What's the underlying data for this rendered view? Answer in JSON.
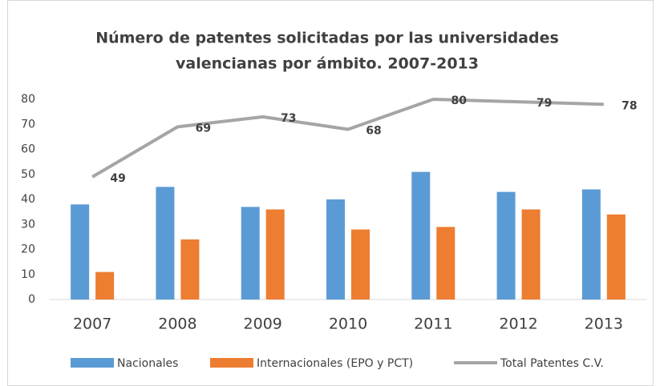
{
  "chart_data": {
    "type": "bar-line",
    "title": [
      "Número de patentes solicitadas por las universidades",
      "valencianas por ámbito. 2007-2013"
    ],
    "categories": [
      "2007",
      "2008",
      "2009",
      "2010",
      "2011",
      "2012",
      "2013"
    ],
    "series": [
      {
        "name": "Nacionales",
        "type": "bar",
        "color": "#5b9bd5",
        "values": [
          38,
          45,
          37,
          40,
          51,
          43,
          44
        ]
      },
      {
        "name": "Internacionales (EPO y PCT)",
        "type": "bar",
        "color": "#ed7d31",
        "values": [
          11,
          24,
          36,
          28,
          29,
          36,
          34
        ]
      },
      {
        "name": "Total Patentes C.V.",
        "type": "line",
        "color": "#a5a5a5",
        "values": [
          49,
          69,
          73,
          68,
          80,
          79,
          78
        ],
        "data_labels": true
      }
    ],
    "ylim": [
      0,
      80
    ],
    "yticks": [
      0,
      10,
      20,
      30,
      40,
      50,
      60,
      70,
      80
    ],
    "grid": false,
    "legend": "bottom"
  }
}
